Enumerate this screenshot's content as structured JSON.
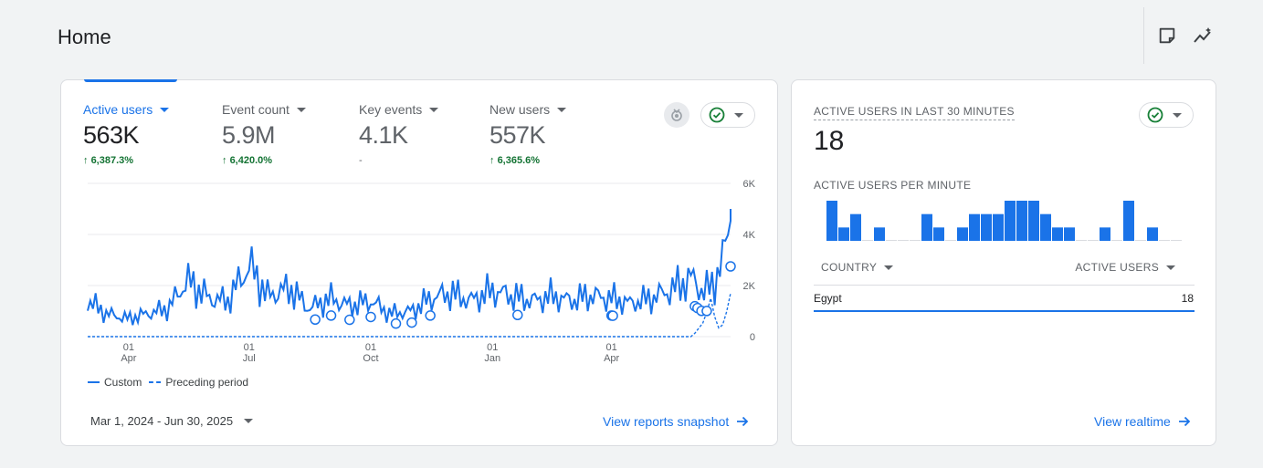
{
  "page": {
    "title": "Home"
  },
  "header": {
    "icons": [
      "note-icon",
      "insights-icon"
    ]
  },
  "main_card": {
    "metrics": [
      {
        "label": "Active users",
        "value": "563K",
        "change": "6,387.3%",
        "active": true
      },
      {
        "label": "Event count",
        "value": "5.9M",
        "change": "6,420.0%",
        "active": false
      },
      {
        "label": "Key events",
        "value": "4.1K",
        "change": "-",
        "active": false
      },
      {
        "label": "New users",
        "value": "557K",
        "change": "6,365.6%",
        "active": false
      }
    ],
    "y_ticks": [
      "6K",
      "4K",
      "2K",
      "0"
    ],
    "x_ticks": [
      {
        "day": "01",
        "month": "Apr"
      },
      {
        "day": "01",
        "month": "Jul"
      },
      {
        "day": "01",
        "month": "Oct"
      },
      {
        "day": "01",
        "month": "Jan"
      },
      {
        "day": "01",
        "month": "Apr"
      }
    ],
    "legend": {
      "custom": "Custom",
      "preceding": "Preceding period"
    },
    "date_range": "Mar 1, 2024 - Jun 30, 2025",
    "link": "View reports snapshot"
  },
  "realtime_card": {
    "title": "ACTIVE USERS IN LAST 30 MINUTES",
    "value": "18",
    "per_minute_label": "ACTIVE USERS PER MINUTE",
    "per_minute_values": [
      3,
      1,
      2,
      0,
      1,
      0,
      0,
      0,
      2,
      1,
      0,
      1,
      2,
      2,
      2,
      3,
      3,
      3,
      2,
      1,
      1,
      0,
      0,
      1,
      0,
      3,
      0,
      1,
      0,
      0
    ],
    "table": {
      "col_country": "COUNTRY",
      "col_users": "ACTIVE USERS",
      "rows": [
        {
          "country": "Egypt",
          "users": "18"
        }
      ]
    },
    "link": "View realtime"
  },
  "chart_data": {
    "type": "line",
    "title": "",
    "xlabel": "",
    "ylabel": "",
    "ylim": [
      0,
      6000
    ],
    "x_range": [
      "2024-03-01",
      "2025-06-30"
    ],
    "x_tick_labels": [
      "01 Apr",
      "01 Jul",
      "01 Oct",
      "01 Jan",
      "01 Apr"
    ],
    "series": [
      {
        "name": "Custom",
        "style": "solid",
        "x": [
          "2024-03-01",
          "2024-03-15",
          "2024-04-01",
          "2024-04-15",
          "2024-05-01",
          "2024-05-15",
          "2024-06-01",
          "2024-06-15",
          "2024-07-01",
          "2024-07-15",
          "2024-08-01",
          "2024-08-15",
          "2024-09-01",
          "2024-09-15",
          "2024-10-01",
          "2024-10-15",
          "2024-11-01",
          "2024-11-15",
          "2024-12-01",
          "2024-12-15",
          "2025-01-01",
          "2025-01-15",
          "2025-02-01",
          "2025-02-15",
          "2025-03-01",
          "2025-03-15",
          "2025-04-01",
          "2025-04-15",
          "2025-05-01",
          "2025-05-15",
          "2025-06-01",
          "2025-06-10",
          "2025-06-18",
          "2025-06-24",
          "2025-06-27",
          "2025-06-29",
          "2025-06-30"
        ],
        "values": [
          1400,
          900,
          700,
          900,
          1100,
          2200,
          1500,
          1400,
          2800,
          1600,
          1900,
          1100,
          1500,
          1200,
          1400,
          900,
          1000,
          1500,
          1700,
          1400,
          1800,
          1600,
          1400,
          1600,
          1400,
          1600,
          1500,
          1300,
          1500,
          1800,
          2300,
          1700,
          2200,
          2900,
          3900,
          4800,
          5000
        ]
      },
      {
        "name": "Preceding period",
        "style": "dashed",
        "x": [
          "2024-03-01",
          "2025-06-01",
          "2025-06-10",
          "2025-06-15",
          "2025-06-20",
          "2025-06-25",
          "2025-06-30"
        ],
        "values": [
          0,
          0,
          600,
          1500,
          300,
          500,
          1700
        ]
      }
    ],
    "markers_x": [
      "2024-08-20",
      "2024-09-01",
      "2024-09-15",
      "2024-10-01",
      "2024-10-20",
      "2024-11-01",
      "2024-11-15",
      "2025-01-20",
      "2025-04-01",
      "2025-04-02",
      "2025-06-03",
      "2025-06-05",
      "2025-06-08",
      "2025-06-12",
      "2025-06-30"
    ],
    "grid": true,
    "legend": "bottom-left"
  },
  "colors": {
    "accent": "#1a73e8",
    "positive": "#137333",
    "green_check": "#188038"
  }
}
